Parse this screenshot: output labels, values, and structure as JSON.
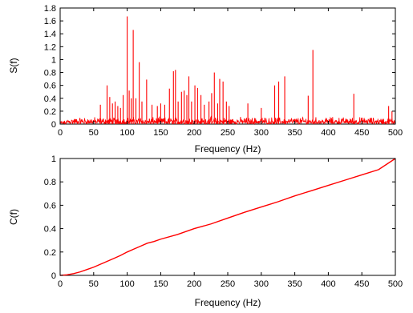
{
  "chart_data": [
    {
      "type": "line",
      "xlabel": "Frequency (Hz)",
      "ylabel": "S(f)",
      "xlim": [
        0,
        500
      ],
      "ylim": [
        0,
        1.8
      ],
      "xticks": [
        "0",
        "50",
        "100",
        "150",
        "200",
        "250",
        "300",
        "350",
        "400",
        "450",
        "500"
      ],
      "yticks": [
        "0",
        "0.2",
        "0.4",
        "0.6",
        "0.8",
        "1",
        "1.2",
        "1.4",
        "1.6",
        "1.8"
      ],
      "grid": false,
      "color": "#ff0000",
      "noise_floor": {
        "x_range": [
          0,
          500
        ],
        "typical_max": 0.12
      },
      "peaks": [
        {
          "x": 60,
          "y": 0.3
        },
        {
          "x": 70,
          "y": 0.6
        },
        {
          "x": 74,
          "y": 0.42
        },
        {
          "x": 78,
          "y": 0.32
        },
        {
          "x": 82,
          "y": 0.35
        },
        {
          "x": 86,
          "y": 0.28
        },
        {
          "x": 90,
          "y": 0.25
        },
        {
          "x": 94,
          "y": 0.45
        },
        {
          "x": 100,
          "y": 1.67
        },
        {
          "x": 103,
          "y": 0.52
        },
        {
          "x": 106,
          "y": 0.4
        },
        {
          "x": 109,
          "y": 1.46
        },
        {
          "x": 113,
          "y": 0.4
        },
        {
          "x": 118,
          "y": 0.96
        },
        {
          "x": 122,
          "y": 0.35
        },
        {
          "x": 129,
          "y": 0.69
        },
        {
          "x": 137,
          "y": 0.3
        },
        {
          "x": 145,
          "y": 0.28
        },
        {
          "x": 150,
          "y": 0.32
        },
        {
          "x": 156,
          "y": 0.3
        },
        {
          "x": 163,
          "y": 0.55
        },
        {
          "x": 169,
          "y": 0.82
        },
        {
          "x": 172,
          "y": 0.84
        },
        {
          "x": 176,
          "y": 0.35
        },
        {
          "x": 181,
          "y": 0.5
        },
        {
          "x": 185,
          "y": 0.52
        },
        {
          "x": 189,
          "y": 0.45
        },
        {
          "x": 192,
          "y": 0.74
        },
        {
          "x": 196,
          "y": 0.35
        },
        {
          "x": 201,
          "y": 0.6
        },
        {
          "x": 205,
          "y": 0.56
        },
        {
          "x": 210,
          "y": 0.45
        },
        {
          "x": 215,
          "y": 0.3
        },
        {
          "x": 222,
          "y": 0.35
        },
        {
          "x": 226,
          "y": 0.48
        },
        {
          "x": 230,
          "y": 0.8
        },
        {
          "x": 235,
          "y": 0.32
        },
        {
          "x": 238,
          "y": 0.7
        },
        {
          "x": 243,
          "y": 0.66
        },
        {
          "x": 248,
          "y": 0.35
        },
        {
          "x": 252,
          "y": 0.28
        },
        {
          "x": 280,
          "y": 0.32
        },
        {
          "x": 300,
          "y": 0.25
        },
        {
          "x": 320,
          "y": 0.6
        },
        {
          "x": 326,
          "y": 0.66
        },
        {
          "x": 335,
          "y": 0.74
        },
        {
          "x": 370,
          "y": 0.44
        },
        {
          "x": 377,
          "y": 1.15
        },
        {
          "x": 438,
          "y": 0.47
        },
        {
          "x": 490,
          "y": 0.28
        },
        {
          "x": 495,
          "y": 0.2
        }
      ]
    },
    {
      "type": "line",
      "xlabel": "Frequency (Hz)",
      "ylabel": "C(f)",
      "xlim": [
        0,
        500
      ],
      "ylim": [
        0,
        1
      ],
      "xticks": [
        "0",
        "50",
        "100",
        "150",
        "200",
        "250",
        "300",
        "350",
        "400",
        "450",
        "500"
      ],
      "yticks": [
        "0",
        "0.2",
        "0.4",
        "0.6",
        "0.8",
        "1"
      ],
      "grid": false,
      "color": "#ff0000",
      "x": [
        0,
        10,
        20,
        30,
        40,
        50,
        60,
        70,
        80,
        90,
        100,
        110,
        120,
        130,
        140,
        150,
        175,
        200,
        225,
        250,
        275,
        300,
        325,
        350,
        375,
        400,
        425,
        450,
        475,
        500
      ],
      "y": [
        0,
        0.005,
        0.015,
        0.03,
        0.05,
        0.07,
        0.095,
        0.12,
        0.145,
        0.17,
        0.2,
        0.225,
        0.25,
        0.275,
        0.29,
        0.31,
        0.35,
        0.4,
        0.44,
        0.49,
        0.54,
        0.585,
        0.63,
        0.68,
        0.725,
        0.77,
        0.815,
        0.86,
        0.905,
        1.0
      ]
    }
  ]
}
